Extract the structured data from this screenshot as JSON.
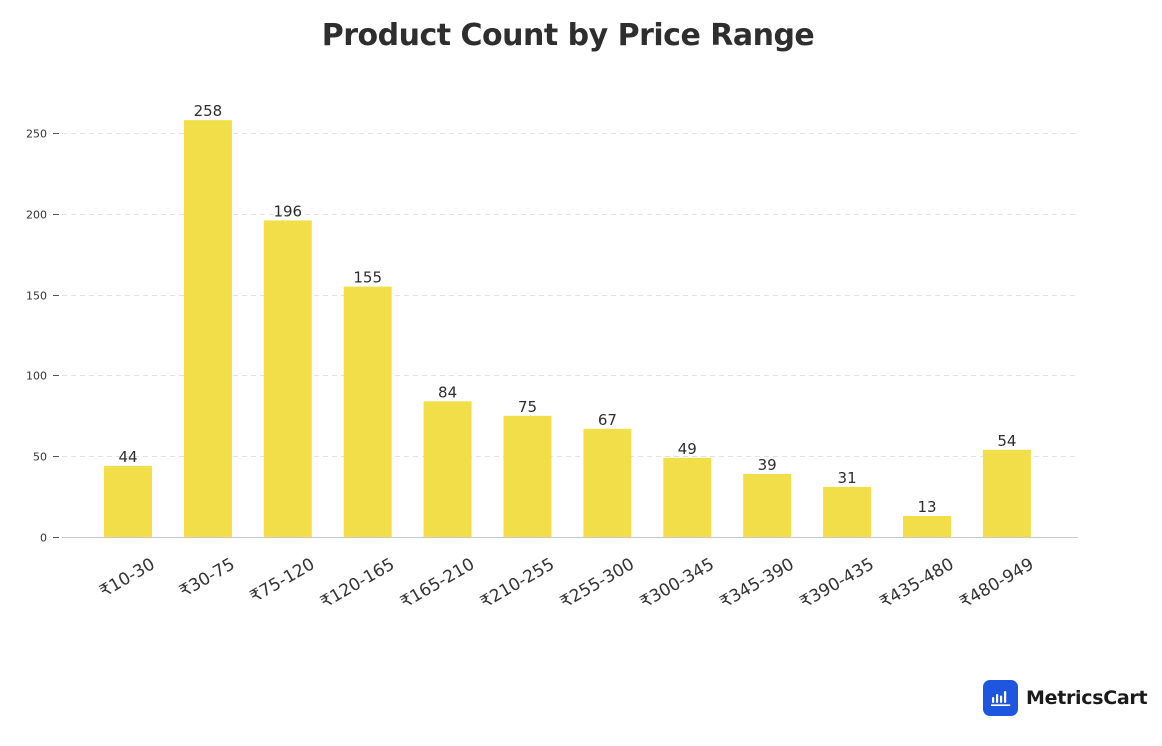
{
  "chart_data": {
    "type": "bar",
    "title": "Product Count by Price Range",
    "xlabel": "",
    "ylabel": "",
    "categories": [
      "₹10-30",
      "₹30-75",
      "₹75-120",
      "₹120-165",
      "₹165-210",
      "₹210-255",
      "₹255-300",
      "₹300-345",
      "₹345-390",
      "₹390-435",
      "₹435-480",
      "₹480-949"
    ],
    "values": [
      44,
      258,
      196,
      155,
      84,
      75,
      67,
      49,
      39,
      31,
      13,
      54
    ],
    "ylim": [
      0,
      275
    ],
    "yticks": [
      0,
      50,
      100,
      150,
      200,
      250
    ],
    "grid": true,
    "legend": "none",
    "bar_color": "#f2de48",
    "grid_color": "#e1e1e1"
  },
  "brand": {
    "name": "MetricsCart",
    "logo_color": "#1f56e0",
    "logo_icon": "bar-chart-icon"
  }
}
